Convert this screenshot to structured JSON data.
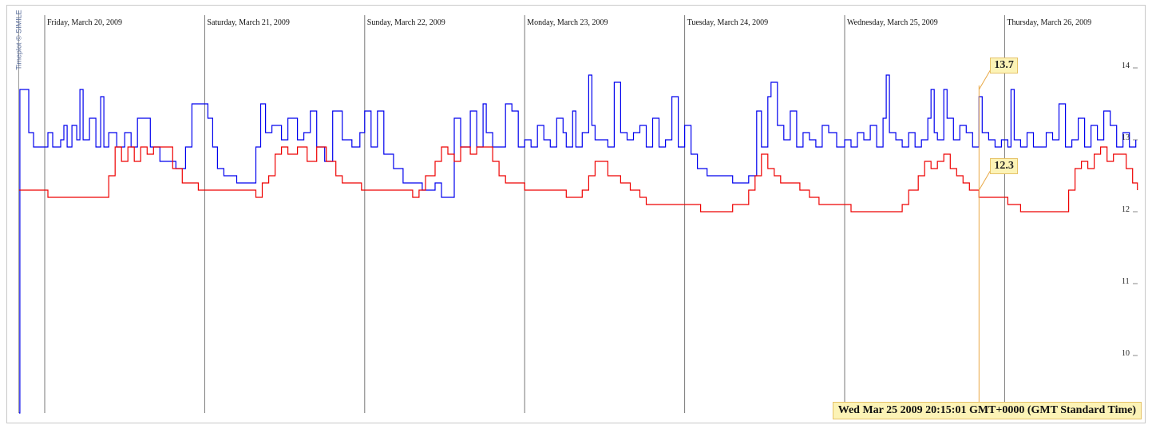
{
  "copyright": "Timeplot © SIMILE",
  "chart_data": {
    "type": "line",
    "title": "",
    "xlabel": "",
    "ylabel": "",
    "ylim": [
      9.2,
      14.8
    ],
    "yticks": [
      10,
      11,
      12,
      13,
      14
    ],
    "ytick_labels": [
      "10",
      "11",
      "12",
      "13",
      "14"
    ],
    "day_labels": [
      {
        "day": 0,
        "label": "Friday, March 20, 2009"
      },
      {
        "day": 1,
        "label": "Saturday, March 21, 2009"
      },
      {
        "day": 2,
        "label": "Sunday, March 22, 2009"
      },
      {
        "day": 3,
        "label": "Monday, March 23, 2009"
      },
      {
        "day": 4,
        "label": "Tuesday, March 24, 2009"
      },
      {
        "day": 5,
        "label": "Wednesday, March 25, 2009"
      },
      {
        "day": 6,
        "label": "Thursday, March 26, 2009"
      }
    ],
    "x_unit": "days since 2009-03-20 00:00",
    "xlim": [
      -0.16,
      6.83
    ],
    "series": [
      {
        "name": "blue",
        "color": "#0000ee",
        "points": [
          [
            -0.16,
            9.2
          ],
          [
            -0.155,
            13.7
          ],
          [
            -0.1,
            13.7
          ],
          [
            -0.1,
            13.1
          ],
          [
            -0.07,
            13.1
          ],
          [
            -0.07,
            12.9
          ],
          [
            -0.05,
            12.9
          ],
          [
            0.0,
            12.9
          ],
          [
            0.02,
            13.1
          ],
          [
            0.05,
            12.9
          ],
          [
            0.1,
            13.0
          ],
          [
            0.12,
            13.2
          ],
          [
            0.14,
            12.9
          ],
          [
            0.17,
            13.2
          ],
          [
            0.2,
            13.0
          ],
          [
            0.22,
            13.7
          ],
          [
            0.24,
            13.0
          ],
          [
            0.28,
            13.3
          ],
          [
            0.32,
            12.9
          ],
          [
            0.35,
            13.6
          ],
          [
            0.37,
            12.9
          ],
          [
            0.4,
            13.1
          ],
          [
            0.45,
            12.9
          ],
          [
            0.5,
            13.1
          ],
          [
            0.54,
            12.9
          ],
          [
            0.58,
            13.3
          ],
          [
            0.62,
            13.3
          ],
          [
            0.66,
            12.9
          ],
          [
            0.72,
            12.7
          ],
          [
            0.76,
            12.7
          ],
          [
            0.82,
            12.6
          ],
          [
            0.86,
            12.6
          ],
          [
            0.88,
            12.9
          ],
          [
            0.92,
            13.5
          ],
          [
            0.96,
            13.5
          ],
          [
            1.02,
            13.3
          ],
          [
            1.05,
            12.9
          ],
          [
            1.08,
            12.6
          ],
          [
            1.12,
            12.5
          ],
          [
            1.2,
            12.4
          ],
          [
            1.28,
            12.4
          ],
          [
            1.32,
            12.9
          ],
          [
            1.35,
            13.5
          ],
          [
            1.38,
            13.1
          ],
          [
            1.42,
            13.2
          ],
          [
            1.48,
            13.0
          ],
          [
            1.52,
            13.3
          ],
          [
            1.58,
            13.0
          ],
          [
            1.62,
            13.1
          ],
          [
            1.66,
            13.4
          ],
          [
            1.7,
            12.9
          ],
          [
            1.75,
            12.7
          ],
          [
            1.8,
            13.4
          ],
          [
            1.86,
            13.0
          ],
          [
            1.92,
            12.9
          ],
          [
            1.97,
            13.1
          ],
          [
            2.0,
            13.4
          ],
          [
            2.04,
            12.9
          ],
          [
            2.08,
            13.4
          ],
          [
            2.12,
            12.8
          ],
          [
            2.18,
            12.6
          ],
          [
            2.24,
            12.4
          ],
          [
            2.3,
            12.4
          ],
          [
            2.36,
            12.3
          ],
          [
            2.4,
            12.3
          ],
          [
            2.44,
            12.4
          ],
          [
            2.48,
            12.2
          ],
          [
            2.52,
            12.2
          ],
          [
            2.56,
            13.3
          ],
          [
            2.6,
            12.9
          ],
          [
            2.66,
            13.4
          ],
          [
            2.7,
            12.9
          ],
          [
            2.74,
            13.5
          ],
          [
            2.76,
            13.1
          ],
          [
            2.8,
            12.9
          ],
          [
            2.84,
            12.9
          ],
          [
            2.88,
            13.5
          ],
          [
            2.92,
            13.4
          ],
          [
            2.96,
            12.9
          ],
          [
            3.0,
            13.0
          ],
          [
            3.04,
            12.9
          ],
          [
            3.08,
            13.2
          ],
          [
            3.12,
            13.0
          ],
          [
            3.16,
            12.9
          ],
          [
            3.2,
            13.3
          ],
          [
            3.24,
            13.1
          ],
          [
            3.26,
            12.9
          ],
          [
            3.3,
            13.4
          ],
          [
            3.32,
            12.9
          ],
          [
            3.36,
            13.1
          ],
          [
            3.4,
            13.9
          ],
          [
            3.42,
            13.2
          ],
          [
            3.44,
            13.0
          ],
          [
            3.48,
            13.0
          ],
          [
            3.52,
            12.9
          ],
          [
            3.56,
            13.8
          ],
          [
            3.6,
            13.1
          ],
          [
            3.64,
            13.0
          ],
          [
            3.68,
            13.1
          ],
          [
            3.72,
            13.2
          ],
          [
            3.76,
            12.9
          ],
          [
            3.8,
            13.3
          ],
          [
            3.84,
            12.9
          ],
          [
            3.88,
            13.0
          ],
          [
            3.92,
            13.6
          ],
          [
            3.96,
            12.9
          ],
          [
            4.0,
            13.2
          ],
          [
            4.04,
            12.8
          ],
          [
            4.08,
            12.6
          ],
          [
            4.14,
            12.5
          ],
          [
            4.2,
            12.5
          ],
          [
            4.26,
            12.5
          ],
          [
            4.3,
            12.4
          ],
          [
            4.36,
            12.4
          ],
          [
            4.4,
            12.5
          ],
          [
            4.42,
            12.5
          ],
          [
            4.45,
            13.4
          ],
          [
            4.48,
            12.9
          ],
          [
            4.52,
            13.6
          ],
          [
            4.54,
            13.8
          ],
          [
            4.58,
            13.2
          ],
          [
            4.62,
            13.0
          ],
          [
            4.66,
            13.4
          ],
          [
            4.7,
            12.9
          ],
          [
            4.74,
            13.1
          ],
          [
            4.78,
            13.0
          ],
          [
            4.82,
            12.9
          ],
          [
            4.86,
            13.2
          ],
          [
            4.9,
            13.1
          ],
          [
            4.95,
            12.9
          ],
          [
            5.0,
            13.0
          ],
          [
            5.04,
            12.9
          ],
          [
            5.08,
            13.1
          ],
          [
            5.12,
            13.0
          ],
          [
            5.16,
            13.2
          ],
          [
            5.2,
            12.9
          ],
          [
            5.24,
            13.3
          ],
          [
            5.26,
            13.9
          ],
          [
            5.28,
            13.1
          ],
          [
            5.32,
            13.0
          ],
          [
            5.36,
            12.9
          ],
          [
            5.4,
            13.1
          ],
          [
            5.44,
            12.9
          ],
          [
            5.48,
            13.0
          ],
          [
            5.52,
            13.3
          ],
          [
            5.54,
            13.7
          ],
          [
            5.56,
            13.1
          ],
          [
            5.58,
            13.0
          ],
          [
            5.62,
            13.7
          ],
          [
            5.64,
            13.3
          ],
          [
            5.68,
            13.0
          ],
          [
            5.72,
            13.2
          ],
          [
            5.76,
            13.1
          ],
          [
            5.8,
            12.9
          ],
          [
            5.84,
            13.6
          ],
          [
            5.86,
            13.1
          ],
          [
            5.9,
            13.0
          ],
          [
            5.94,
            12.9
          ],
          [
            5.98,
            13.0
          ],
          [
            6.02,
            12.9
          ],
          [
            6.04,
            13.7
          ],
          [
            6.06,
            13.0
          ],
          [
            6.1,
            12.9
          ],
          [
            6.14,
            13.1
          ],
          [
            6.18,
            12.9
          ],
          [
            6.22,
            12.9
          ],
          [
            6.26,
            13.1
          ],
          [
            6.3,
            13.0
          ],
          [
            6.34,
            13.5
          ],
          [
            6.38,
            12.9
          ],
          [
            6.42,
            13.0
          ],
          [
            6.46,
            13.3
          ],
          [
            6.5,
            12.9
          ],
          [
            6.54,
            13.2
          ],
          [
            6.58,
            13.0
          ],
          [
            6.62,
            13.4
          ],
          [
            6.66,
            13.2
          ],
          [
            6.7,
            12.9
          ],
          [
            6.74,
            13.1
          ],
          [
            6.78,
            12.9
          ],
          [
            6.82,
            13.0
          ]
        ]
      },
      {
        "name": "red",
        "color": "#ee0000",
        "points": [
          [
            -0.16,
            12.3
          ],
          [
            -0.155,
            12.3
          ],
          [
            0.0,
            12.3
          ],
          [
            0.02,
            12.2
          ],
          [
            0.2,
            12.2
          ],
          [
            0.36,
            12.2
          ],
          [
            0.4,
            12.5
          ],
          [
            0.44,
            12.9
          ],
          [
            0.48,
            12.7
          ],
          [
            0.52,
            12.9
          ],
          [
            0.56,
            12.7
          ],
          [
            0.6,
            12.9
          ],
          [
            0.64,
            12.8
          ],
          [
            0.68,
            12.9
          ],
          [
            0.72,
            12.9
          ],
          [
            0.76,
            12.9
          ],
          [
            0.8,
            12.6
          ],
          [
            0.86,
            12.4
          ],
          [
            0.92,
            12.4
          ],
          [
            0.96,
            12.3
          ],
          [
            1.0,
            12.3
          ],
          [
            1.1,
            12.3
          ],
          [
            1.28,
            12.3
          ],
          [
            1.32,
            12.2
          ],
          [
            1.36,
            12.4
          ],
          [
            1.4,
            12.5
          ],
          [
            1.44,
            12.8
          ],
          [
            1.48,
            12.9
          ],
          [
            1.52,
            12.8
          ],
          [
            1.58,
            12.9
          ],
          [
            1.64,
            12.7
          ],
          [
            1.7,
            12.9
          ],
          [
            1.76,
            12.7
          ],
          [
            1.82,
            12.5
          ],
          [
            1.86,
            12.4
          ],
          [
            1.92,
            12.4
          ],
          [
            1.98,
            12.3
          ],
          [
            2.1,
            12.3
          ],
          [
            2.24,
            12.3
          ],
          [
            2.3,
            12.2
          ],
          [
            2.34,
            12.3
          ],
          [
            2.38,
            12.5
          ],
          [
            2.44,
            12.7
          ],
          [
            2.48,
            12.9
          ],
          [
            2.52,
            12.8
          ],
          [
            2.56,
            12.7
          ],
          [
            2.6,
            12.9
          ],
          [
            2.66,
            12.8
          ],
          [
            2.7,
            12.9
          ],
          [
            2.76,
            12.9
          ],
          [
            2.8,
            12.7
          ],
          [
            2.84,
            12.5
          ],
          [
            2.88,
            12.4
          ],
          [
            2.92,
            12.4
          ],
          [
            3.0,
            12.3
          ],
          [
            3.1,
            12.3
          ],
          [
            3.2,
            12.3
          ],
          [
            3.26,
            12.2
          ],
          [
            3.32,
            12.2
          ],
          [
            3.36,
            12.3
          ],
          [
            3.4,
            12.5
          ],
          [
            3.44,
            12.7
          ],
          [
            3.48,
            12.7
          ],
          [
            3.52,
            12.5
          ],
          [
            3.56,
            12.5
          ],
          [
            3.6,
            12.4
          ],
          [
            3.66,
            12.3
          ],
          [
            3.72,
            12.2
          ],
          [
            3.76,
            12.1
          ],
          [
            3.8,
            12.1
          ],
          [
            3.9,
            12.1
          ],
          [
            4.02,
            12.1
          ],
          [
            4.1,
            12.0
          ],
          [
            4.2,
            12.0
          ],
          [
            4.3,
            12.1
          ],
          [
            4.36,
            12.1
          ],
          [
            4.4,
            12.3
          ],
          [
            4.44,
            12.5
          ],
          [
            4.48,
            12.8
          ],
          [
            4.52,
            12.6
          ],
          [
            4.56,
            12.5
          ],
          [
            4.6,
            12.4
          ],
          [
            4.66,
            12.4
          ],
          [
            4.72,
            12.3
          ],
          [
            4.78,
            12.2
          ],
          [
            4.84,
            12.1
          ],
          [
            4.9,
            12.1
          ],
          [
            4.96,
            12.1
          ],
          [
            5.04,
            12.0
          ],
          [
            5.1,
            12.0
          ],
          [
            5.2,
            12.0
          ],
          [
            5.3,
            12.0
          ],
          [
            5.36,
            12.1
          ],
          [
            5.4,
            12.3
          ],
          [
            5.46,
            12.5
          ],
          [
            5.5,
            12.7
          ],
          [
            5.54,
            12.6
          ],
          [
            5.58,
            12.7
          ],
          [
            5.62,
            12.8
          ],
          [
            5.66,
            12.6
          ],
          [
            5.7,
            12.5
          ],
          [
            5.74,
            12.4
          ],
          [
            5.78,
            12.3
          ],
          [
            5.84,
            12.2
          ],
          [
            5.9,
            12.2
          ],
          [
            5.96,
            12.2
          ],
          [
            6.02,
            12.1
          ],
          [
            6.1,
            12.0
          ],
          [
            6.2,
            12.0
          ],
          [
            6.36,
            12.0
          ],
          [
            6.4,
            12.3
          ],
          [
            6.44,
            12.6
          ],
          [
            6.48,
            12.7
          ],
          [
            6.52,
            12.6
          ],
          [
            6.56,
            12.8
          ],
          [
            6.6,
            12.9
          ],
          [
            6.64,
            12.7
          ],
          [
            6.68,
            12.8
          ],
          [
            6.72,
            12.8
          ],
          [
            6.76,
            12.6
          ],
          [
            6.8,
            12.4
          ],
          [
            6.83,
            12.3
          ]
        ]
      }
    ],
    "annotations": [
      {
        "label": "13.7",
        "value": 13.7,
        "series": "blue"
      },
      {
        "label": "12.3",
        "value": 12.3,
        "series": "red"
      }
    ],
    "cursor": {
      "x": 5.84,
      "label": "Wed Mar 25 2009 20:15:01 GMT+0000 (GMT Standard Time)"
    }
  }
}
